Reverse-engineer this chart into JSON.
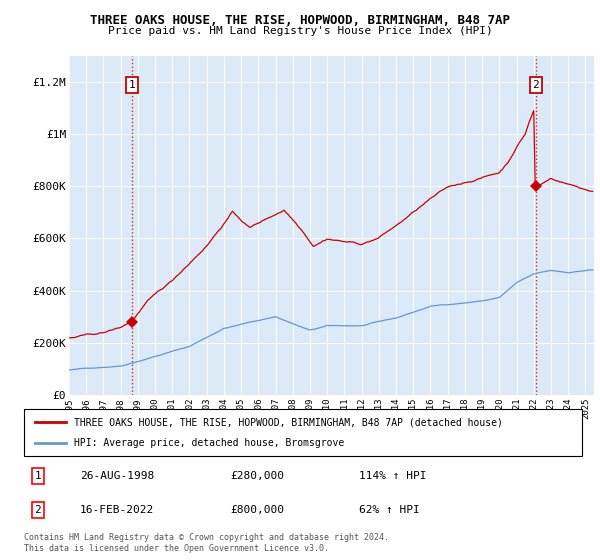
{
  "title": "THREE OAKS HOUSE, THE RISE, HOPWOOD, BIRMINGHAM, B48 7AP",
  "subtitle": "Price paid vs. HM Land Registry's House Price Index (HPI)",
  "ylabel_ticks": [
    "£0",
    "£200K",
    "£400K",
    "£600K",
    "£800K",
    "£1M",
    "£1.2M"
  ],
  "ytick_values": [
    0,
    200000,
    400000,
    600000,
    800000,
    1000000,
    1200000
  ],
  "ylim": [
    0,
    1300000
  ],
  "xlim_start": 1995.0,
  "xlim_end": 2025.5,
  "plot_bg_color": "#dce9f7",
  "hpi_line_color": "#6699cc",
  "price_line_color": "#cc0000",
  "sale1_date": "26-AUG-1998",
  "sale1_price": 280000,
  "sale1_hpi_pct": "114%",
  "sale2_date": "16-FEB-2022",
  "sale2_price": 800000,
  "sale2_hpi_pct": "62%",
  "legend_label_price": "THREE OAKS HOUSE, THE RISE, HOPWOOD, BIRMINGHAM, B48 7AP (detached house)",
  "legend_label_hpi": "HPI: Average price, detached house, Bromsgrove",
  "footer_text": "Contains HM Land Registry data © Crown copyright and database right 2024.\nThis data is licensed under the Open Government Licence v3.0.",
  "sale1_x": 1998.65,
  "sale1_y": 280000,
  "sale2_x": 2022.12,
  "sale2_y": 800000
}
